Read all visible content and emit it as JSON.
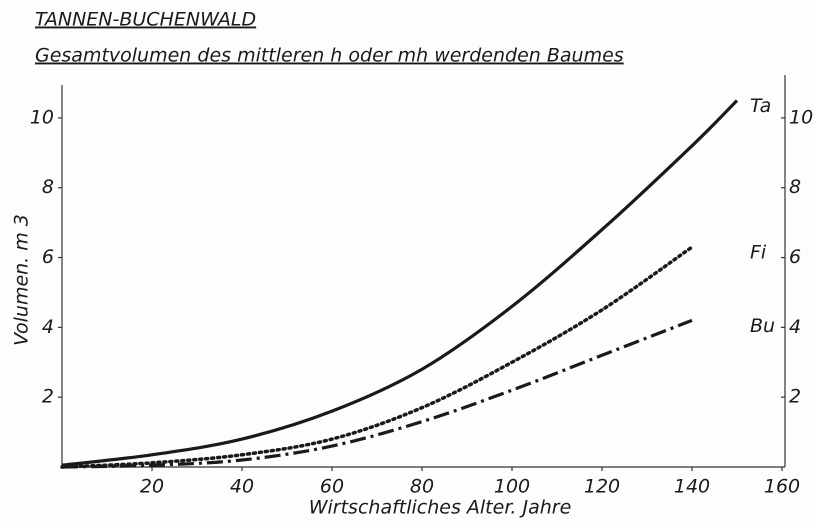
{
  "chart_data": {
    "type": "line",
    "title": "TANNEN-BUCHENWALD",
    "subtitle": "Gesamtvolumen des mittleren h oder mh werdenden Baumes",
    "x_label": "Wirtschaftliches Alter. Jahre",
    "y_label": "Volumen. m 3",
    "xlim": [
      0,
      160
    ],
    "xticks": [
      20,
      40,
      60,
      80,
      100,
      120,
      140,
      160
    ],
    "ylim": [
      0,
      11
    ],
    "yticks": [
      2,
      4,
      6,
      8,
      10
    ],
    "y2lim": [
      0,
      11
    ],
    "y2ticks": [
      2,
      4,
      6,
      8,
      10
    ],
    "grid": false,
    "series": [
      {
        "name": "Ta",
        "color": "#1a1a1a",
        "dash": "solid",
        "x": [
          0,
          20,
          40,
          60,
          80,
          100,
          120,
          140,
          150
        ],
        "values": [
          0.05,
          0.35,
          0.8,
          1.6,
          2.8,
          4.6,
          6.8,
          9.2,
          10.5
        ]
      },
      {
        "name": "Fi",
        "color": "#1a1a1a",
        "dash": "dotted",
        "x": [
          0,
          20,
          40,
          60,
          80,
          100,
          120,
          140
        ],
        "values": [
          0,
          0.12,
          0.35,
          0.8,
          1.7,
          3.0,
          4.5,
          6.3
        ]
      },
      {
        "name": "Bu",
        "color": "#1a1a1a",
        "dash": "dashdot",
        "x": [
          0,
          20,
          40,
          60,
          80,
          100,
          120,
          140
        ],
        "values": [
          0,
          0.05,
          0.2,
          0.6,
          1.3,
          2.2,
          3.2,
          4.2
        ]
      }
    ]
  }
}
